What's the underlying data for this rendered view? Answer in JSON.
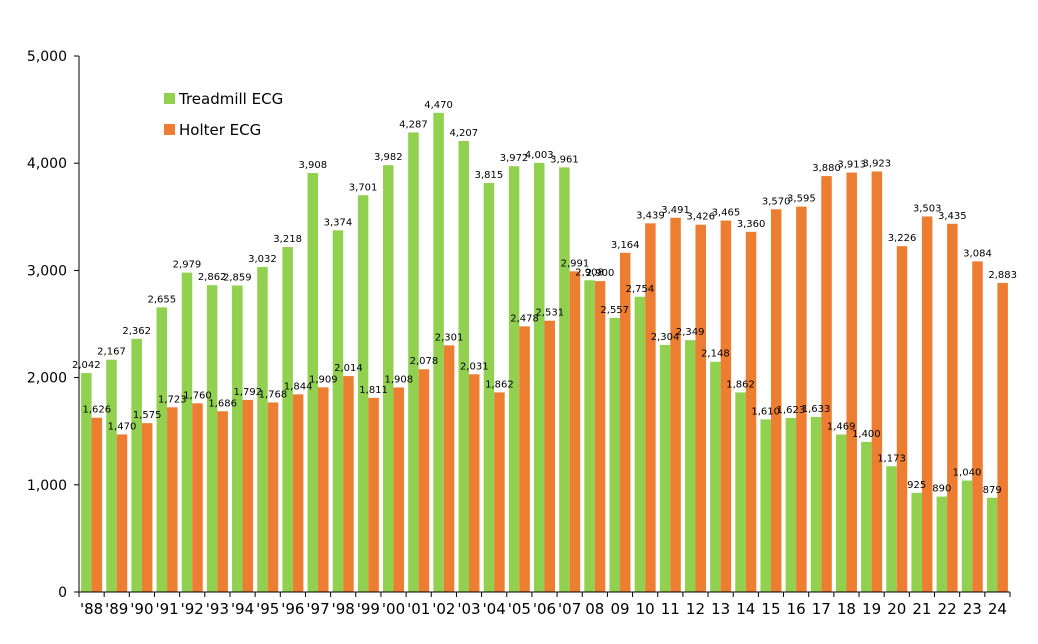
{
  "chart_data": {
    "type": "bar",
    "categories": [
      "'88",
      "'89",
      "'90",
      "'91",
      "'92",
      "'93",
      "'94",
      "'95",
      "'96",
      "'97",
      "'98",
      "'99",
      "'00",
      "'01",
      "'02",
      "'03",
      "'04",
      "'05",
      "'06",
      "'07",
      "08",
      "09",
      "10",
      "11",
      "12",
      "13",
      "14",
      "15",
      "16",
      "17",
      "18",
      "19",
      "20",
      "21",
      "22",
      "23",
      "24"
    ],
    "series": [
      {
        "name": "Treadmill ECG",
        "color": "#92d050",
        "values": [
          2042,
          2167,
          2362,
          2655,
          2979,
          2862,
          2859,
          3032,
          3218,
          3908,
          3374,
          3701,
          3982,
          4287,
          4470,
          4207,
          3815,
          3972,
          4003,
          3961,
          2908,
          2557,
          2754,
          2304,
          2349,
          2148,
          1862,
          1610,
          1623,
          1633,
          1469,
          1400,
          1173,
          925,
          890,
          1040,
          879
        ],
        "labels": [
          "2,042",
          "2,167",
          "2,362",
          "2,655",
          "2,979",
          "2,862",
          "2,859",
          "3,032",
          "3,218",
          "3,908",
          "3,374",
          "3,701",
          "3,982",
          "4,287",
          "4,470",
          "4,207",
          "3,815",
          "3,972",
          "4,003",
          "3,961",
          "2,908",
          "2,557",
          "2,754",
          "2,304",
          "2,349",
          "2,148",
          "1,862",
          "1,610",
          "1,623",
          "1,633",
          "1,469",
          "1,400",
          "1,173",
          "925",
          "890",
          "1,040",
          "879"
        ]
      },
      {
        "name": "Holter ECG",
        "color": "#ed7d31",
        "values": [
          1626,
          1470,
          1575,
          1723,
          1760,
          1686,
          1792,
          1768,
          1844,
          1909,
          2014,
          1811,
          1908,
          2078,
          2301,
          2031,
          1862,
          2478,
          2531,
          2991,
          2900,
          3164,
          3439,
          3491,
          3426,
          3465,
          3360,
          3570,
          3595,
          3880,
          3913,
          3923,
          3226,
          3503,
          3435,
          3084,
          2883
        ],
        "labels": [
          "1,626",
          "1,470",
          "1,575",
          "1,723",
          "1,760",
          "1,686",
          "1,792",
          "1,768",
          "1,844",
          "1,909",
          "2,014",
          "1,811",
          "1,908",
          "2,078",
          "2,301",
          "2,031",
          "1,862",
          "2,478",
          "2,531",
          "2,991",
          "2,900",
          "3,164",
          "3,439",
          "3,491",
          "3,426",
          "3,465",
          "3,360",
          "3,570",
          "3,595",
          "3,880",
          "3,913",
          "3,923",
          "3,226",
          "3,503",
          "3,435",
          "3,084",
          "2,883"
        ]
      }
    ],
    "ylim": [
      0,
      5000
    ],
    "yticks": [
      0,
      1000,
      2000,
      3000,
      4000,
      5000
    ],
    "ytick_labels": [
      "0",
      "1,000",
      "2,000",
      "3,000",
      "4,000",
      "5,000"
    ],
    "title": "",
    "xlabel": "",
    "ylabel": "",
    "grid": false,
    "legend_position": "top-left"
  }
}
